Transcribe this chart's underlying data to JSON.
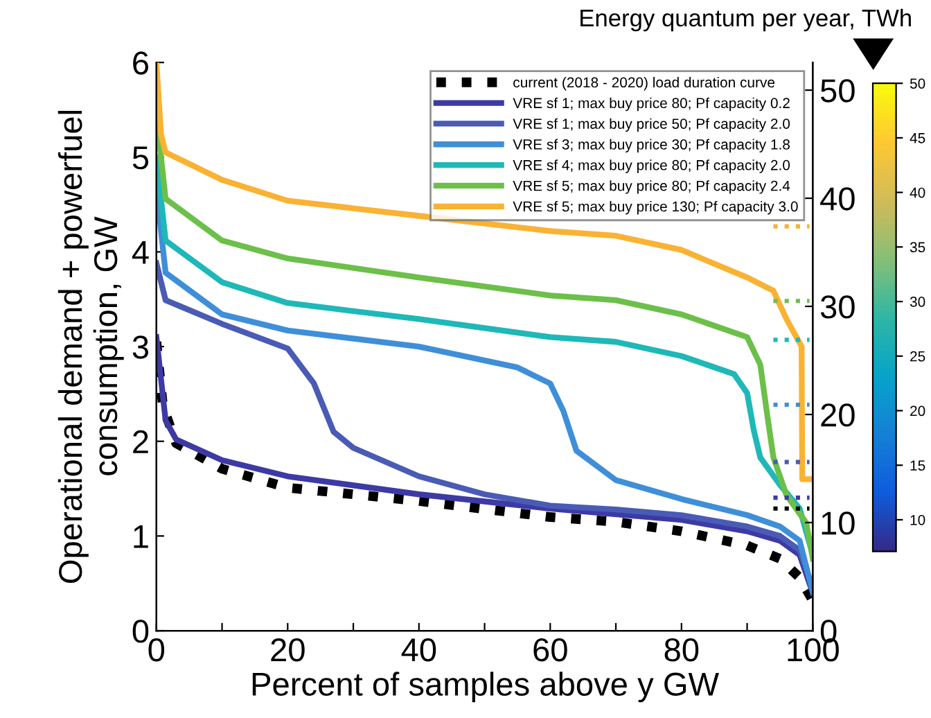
{
  "chart_data": {
    "type": "line",
    "xlabel": "Percent of samples above y GW",
    "ylabel": "Operational demand + powerfuel\nconsumption, GW",
    "y2label": "Energy quantum per year, TWh",
    "xlim": [
      0,
      100
    ],
    "xticks": [
      0,
      {
        "value": 10,
        "label": null
      },
      20,
      {
        "value": 30,
        "label": null
      },
      40,
      {
        "value": 50,
        "label": null
      },
      60,
      {
        "value": 70,
        "label": null
      },
      80,
      {
        "value": 90,
        "label": null
      },
      100
    ],
    "ylim": [
      0,
      6
    ],
    "yticks": [
      0,
      1,
      2,
      3,
      4,
      5,
      6
    ],
    "y2lim": [
      0,
      52.56
    ],
    "y2ticks": [
      0,
      10,
      20,
      30,
      40,
      50
    ],
    "clim": [
      7.1,
      50
    ],
    "cticks": [
      10,
      15,
      20,
      25,
      30,
      35,
      40,
      45,
      50
    ],
    "legend": "top right",
    "grid": false,
    "series": [
      {
        "name": "current (2018 - 2020) load duration curve",
        "color": "#000000",
        "line_style": "dotted",
        "x": [
          0,
          1,
          3,
          10,
          20,
          40,
          60,
          70,
          80,
          90,
          95,
          98,
          100
        ],
        "values": [
          3.05,
          2.37,
          1.98,
          1.71,
          1.51,
          1.37,
          1.2,
          1.15,
          1.05,
          0.9,
          0.76,
          0.56,
          0.32
        ]
      },
      {
        "name": "VRE sf 1; max buy price 80; Pf capacity 0.2",
        "color": "#3d3aa5",
        "x": [
          0,
          1.4,
          3,
          10,
          20,
          40,
          60,
          80,
          90,
          95,
          98,
          100
        ],
        "values": [
          3.1,
          2.22,
          2.02,
          1.8,
          1.63,
          1.44,
          1.29,
          1.17,
          1.05,
          0.95,
          0.8,
          0.4
        ]
      },
      {
        "name": "VRE sf 1; max buy price 50; Pf capacity 2.0",
        "color": "#4a5bb5",
        "x": [
          0,
          1.4,
          10,
          20,
          24,
          26,
          27,
          30,
          40,
          50,
          60,
          70,
          80,
          90,
          95,
          98,
          100
        ],
        "values": [
          3.88,
          3.49,
          3.24,
          2.98,
          2.61,
          2.27,
          2.1,
          1.93,
          1.63,
          1.44,
          1.32,
          1.28,
          1.22,
          1.1,
          1.0,
          0.85,
          0.45
        ]
      },
      {
        "name": "VRE sf 3; max buy price 30; Pf capacity 1.8",
        "color": "#3f8fd8",
        "x": [
          0,
          1.4,
          10,
          20,
          40,
          55,
          60,
          62,
          64,
          70,
          80,
          90,
          95,
          98,
          100
        ],
        "values": [
          4.66,
          3.78,
          3.34,
          3.17,
          3.0,
          2.78,
          2.61,
          2.32,
          1.9,
          1.59,
          1.39,
          1.22,
          1.1,
          0.95,
          0.41
        ]
      },
      {
        "name": "VRE sf 4; max buy price 80; Pf capacity 2.0",
        "color": "#1fb8b8",
        "x": [
          0,
          1.4,
          10,
          20,
          40,
          60,
          70,
          80,
          88,
          90,
          91,
          92,
          95,
          98,
          100
        ],
        "values": [
          5.0,
          4.12,
          3.68,
          3.46,
          3.29,
          3.1,
          3.05,
          2.9,
          2.71,
          2.51,
          2.12,
          1.83,
          1.54,
          1.29,
          0.8
        ]
      },
      {
        "name": "VRE sf 5; max buy price 80; Pf capacity 2.4",
        "color": "#6cc04a",
        "x": [
          0,
          1.4,
          10,
          20,
          40,
          60,
          70,
          80,
          90,
          92,
          93,
          94,
          96,
          99,
          100
        ],
        "values": [
          5.44,
          4.56,
          4.12,
          3.93,
          3.73,
          3.54,
          3.49,
          3.34,
          3.1,
          2.81,
          2.31,
          1.83,
          1.43,
          1.14,
          0.76
        ]
      },
      {
        "name": "VRE sf 5; max buy price 130; Pf capacity 3.0",
        "color": "#f9b233",
        "x": [
          0,
          0.7,
          1.4,
          10,
          20,
          40,
          60,
          70,
          80,
          90,
          94,
          96,
          98.3,
          98.4,
          100
        ],
        "values": [
          6.0,
          5.24,
          5.05,
          4.76,
          4.54,
          4.38,
          4.22,
          4.17,
          4.02,
          3.73,
          3.59,
          3.29,
          3.0,
          1.6,
          1.6
        ]
      },
      {
        "axis": "y2",
        "color": "#000000",
        "line_style": "dotted",
        "x": [
          94,
          99.5
        ],
        "values": [
          11.3,
          11.3
        ]
      },
      {
        "axis": "y2",
        "color": "#3d3aa5",
        "line_style": "dotted",
        "x": [
          94,
          99.5
        ],
        "values": [
          12.3,
          12.3
        ]
      },
      {
        "axis": "y2",
        "color": "#4a5bb5",
        "line_style": "dotted",
        "x": [
          94,
          99.5
        ],
        "values": [
          15.6,
          15.6
        ]
      },
      {
        "axis": "y2",
        "color": "#3f8fd8",
        "line_style": "dotted",
        "x": [
          94,
          99.5
        ],
        "values": [
          20.9,
          20.9
        ]
      },
      {
        "axis": "y2",
        "color": "#1fb8b8",
        "line_style": "dotted",
        "x": [
          94,
          99.5
        ],
        "values": [
          26.9,
          26.9
        ]
      },
      {
        "axis": "y2",
        "color": "#6cc04a",
        "line_style": "dotted",
        "x": [
          94,
          99.5
        ],
        "values": [
          30.5,
          30.5
        ]
      },
      {
        "axis": "y2",
        "color": "#f9b233",
        "line_style": "dotted",
        "x": [
          94,
          99.5
        ],
        "values": [
          37.4,
          37.4
        ]
      }
    ]
  }
}
